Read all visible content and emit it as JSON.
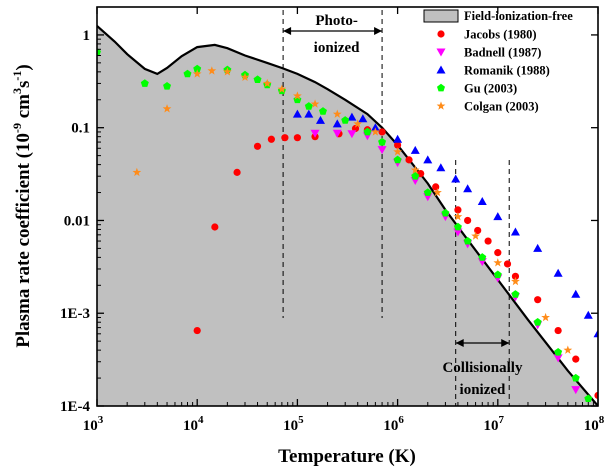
{
  "chart_data": {
    "type": "scatter",
    "xlabel": "Temperature (K)",
    "ylabel": "Plasma rate coefficient (10",
    "ylabel_exp1": "-9",
    "ylabel_mid": " cm",
    "ylabel_exp2": "3",
    "ylabel_s": "s",
    "ylabel_exp3": "-1",
    "ylabel_end": ")",
    "x_scale": "log",
    "y_scale": "log",
    "xlim": [
      1000,
      100000000
    ],
    "ylim": [
      0.0001,
      2
    ],
    "x_ticks": [
      {
        "value": 1000,
        "base": "10",
        "exp": "3"
      },
      {
        "value": 10000,
        "base": "10",
        "exp": "4"
      },
      {
        "value": 100000,
        "base": "10",
        "exp": "5"
      },
      {
        "value": 1000000,
        "base": "10",
        "exp": "6"
      },
      {
        "value": 10000000,
        "base": "10",
        "exp": "7"
      },
      {
        "value": 100000000,
        "base": "10",
        "exp": "8"
      }
    ],
    "y_ticks": [
      {
        "value": 1,
        "label": "1"
      },
      {
        "value": 0.1,
        "label": "0.1"
      },
      {
        "value": 0.01,
        "label": "0.01"
      },
      {
        "value": 0.001,
        "label": "1E-3"
      },
      {
        "value": 0.0001,
        "label": "1E-4"
      }
    ],
    "legend": {
      "placement": "top-right"
    },
    "annotations": {
      "photo_line1": "Photo-",
      "photo_line2": "ionized",
      "coll_line1": "Collisionally",
      "coll_line2": "ionized",
      "photo_range": [
        72000,
        700000
      ],
      "coll_range": [
        3800000,
        13000000
      ]
    },
    "area": {
      "name": "Field-ionization-free",
      "color": "#c0c0c0",
      "x": [
        1000,
        1500,
        2000,
        3000,
        4000,
        5000,
        7000,
        10000,
        15000,
        20000,
        30000,
        50000,
        70000,
        100000,
        150000,
        200000,
        300000,
        500000,
        700000,
        1000000,
        2000000,
        3000000,
        5000000,
        10000000,
        20000000,
        50000000,
        100000000
      ],
      "y": [
        1.25,
        0.85,
        0.62,
        0.43,
        0.38,
        0.44,
        0.59,
        0.74,
        0.78,
        0.72,
        0.6,
        0.5,
        0.44,
        0.38,
        0.31,
        0.26,
        0.2,
        0.14,
        0.1,
        0.065,
        0.025,
        0.013,
        0.0062,
        0.0023,
        0.00085,
        0.00024,
        0.0001
      ]
    },
    "series": [
      {
        "name": "Jacobs (1980)",
        "marker": "circle",
        "color": "#ff0000",
        "x": [
          10000,
          15000,
          25000,
          40000,
          55000,
          75000,
          100000,
          150000,
          260000,
          380000,
          500000,
          700000,
          1000000,
          1300000,
          1700000,
          2400000,
          4000000,
          5000000,
          6300000,
          8000000,
          10000000,
          12500000,
          15000000,
          25000000,
          40000000,
          60000000,
          100000000
        ],
        "y": [
          0.00065,
          0.0085,
          0.033,
          0.063,
          0.075,
          0.078,
          0.078,
          0.08,
          0.086,
          0.098,
          0.095,
          0.09,
          0.065,
          0.045,
          0.032,
          0.023,
          0.013,
          0.01,
          0.0078,
          0.006,
          0.0045,
          0.0034,
          0.0025,
          0.0014,
          0.00065,
          0.00032,
          0.00013
        ]
      },
      {
        "name": "Badnell (1987)",
        "marker": "triangle-down",
        "color": "#ff00ff",
        "x": [
          150000,
          250000,
          350000,
          500000,
          700000,
          1000000,
          1500000,
          2000000,
          3000000,
          4000000,
          5000000,
          7000000,
          10000000,
          15000000,
          25000000,
          40000000,
          60000000
        ],
        "y": [
          0.087,
          0.087,
          0.086,
          0.082,
          0.058,
          0.042,
          0.027,
          0.018,
          0.011,
          0.0075,
          0.0056,
          0.0036,
          0.0024,
          0.0015,
          0.00075,
          0.00033,
          0.00015
        ]
      },
      {
        "name": "Romanik (1988)",
        "marker": "triangle-up",
        "color": "#0000ff",
        "x": [
          100000,
          130000,
          170000,
          250000,
          350000,
          450000,
          600000,
          1000000,
          1500000,
          2000000,
          2700000,
          3800000,
          5000000,
          7000000,
          10000000,
          15000000,
          25000000,
          40000000,
          60000000,
          80000000,
          100000000
        ],
        "y": [
          0.14,
          0.14,
          0.12,
          0.11,
          0.13,
          0.125,
          0.1,
          0.075,
          0.057,
          0.045,
          0.037,
          0.028,
          0.022,
          0.016,
          0.011,
          0.0075,
          0.005,
          0.0027,
          0.0016,
          0.00095,
          0.0006
        ]
      },
      {
        "name": "Gu (2003)",
        "marker": "pentagon",
        "color": "#00ff00",
        "x": [
          1000,
          3000,
          5000,
          8000,
          10000,
          20000,
          30000,
          40000,
          50000,
          70000,
          100000,
          130000,
          180000,
          300000,
          500000,
          700000,
          1000000,
          1500000,
          2000000,
          3000000,
          4000000,
          5000000,
          7000000,
          10000000,
          15000000,
          25000000,
          40000000,
          60000000,
          80000000
        ],
        "y": [
          0.65,
          0.3,
          0.28,
          0.38,
          0.43,
          0.42,
          0.37,
          0.33,
          0.29,
          0.25,
          0.2,
          0.17,
          0.15,
          0.12,
          0.09,
          0.07,
          0.045,
          0.03,
          0.02,
          0.012,
          0.0085,
          0.006,
          0.004,
          0.0026,
          0.0016,
          0.0008,
          0.00038,
          0.0002,
          0.00012
        ]
      },
      {
        "name": "Colgan (2003)",
        "marker": "star",
        "color": "#ff8c1a",
        "x": [
          2500,
          5000,
          10000,
          14000,
          20000,
          30000,
          50000,
          70000,
          100000,
          150000,
          250000,
          400000,
          600000,
          1000000,
          1500000,
          2500000,
          4000000,
          6000000,
          10000000,
          15000000,
          30000000,
          50000000
        ],
        "y": [
          0.033,
          0.16,
          0.38,
          0.41,
          0.4,
          0.35,
          0.3,
          0.26,
          0.22,
          0.18,
          0.14,
          0.11,
          0.09,
          0.055,
          0.035,
          0.02,
          0.011,
          0.0068,
          0.0035,
          0.0022,
          0.0009,
          0.0004
        ]
      }
    ]
  }
}
